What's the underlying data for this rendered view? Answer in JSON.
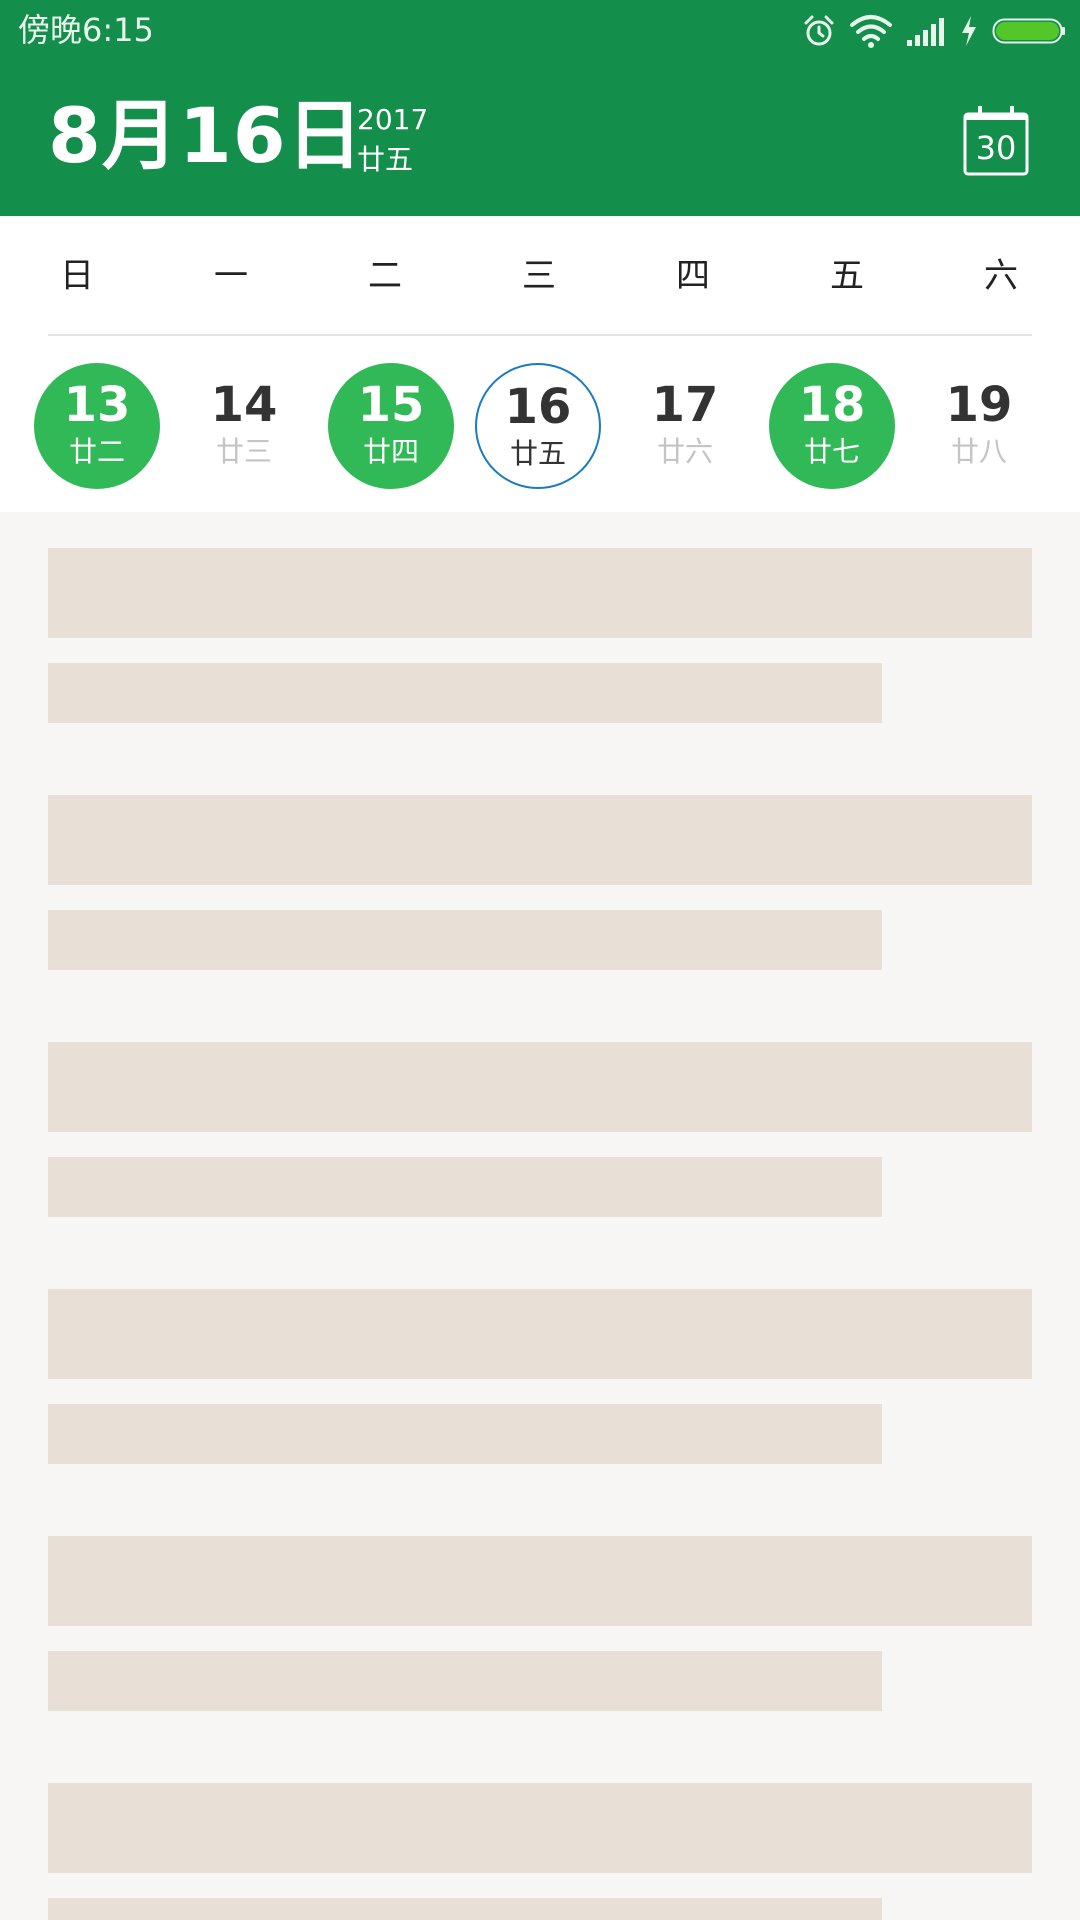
{
  "status_bar": {
    "time": "傍晚6:15",
    "icons": [
      "alarm-icon",
      "wifi-icon",
      "signal-icon",
      "charging-icon",
      "battery-icon"
    ],
    "battery_color": "#53c72a"
  },
  "header": {
    "date": "8月16日",
    "year": "2017",
    "lunar": "廿五",
    "today_button_number": "30",
    "background_color": "#138e4b"
  },
  "weekdays": [
    "日",
    "一",
    "二",
    "三",
    "四",
    "五",
    "六"
  ],
  "week_days": [
    {
      "day": "13",
      "lunar": "廿二",
      "state": "has-event"
    },
    {
      "day": "14",
      "lunar": "廿三",
      "state": "normal"
    },
    {
      "day": "15",
      "lunar": "廿四",
      "state": "has-event"
    },
    {
      "day": "16",
      "lunar": "廿五",
      "state": "today"
    },
    {
      "day": "17",
      "lunar": "廿六",
      "state": "normal"
    },
    {
      "day": "18",
      "lunar": "廿七",
      "state": "has-event"
    },
    {
      "day": "19",
      "lunar": "廿八",
      "state": "normal"
    }
  ],
  "colors": {
    "event_green": "#31b857",
    "today_ring": "#1a7bbf",
    "placeholder": "#e8e0d7"
  },
  "placeholder_card_count": 6
}
